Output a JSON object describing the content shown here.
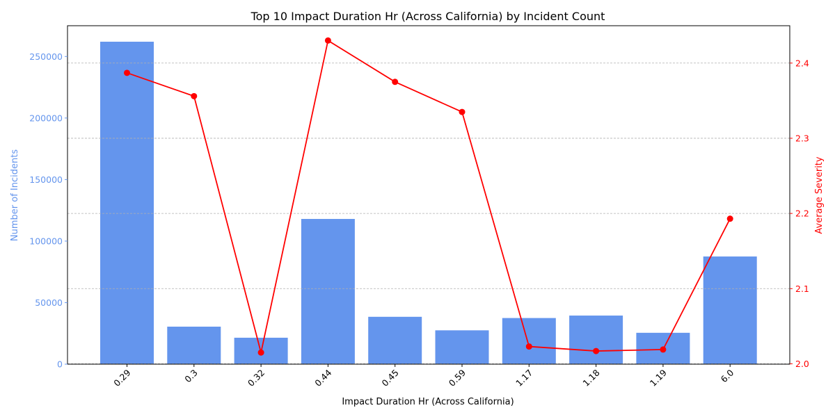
{
  "chart_data": {
    "type": "bar",
    "title": "Top 10 Impact Duration Hr (Across California) by Incident Count",
    "xlabel": "Impact Duration Hr (Across California)",
    "categories": [
      "0.29",
      "0.3",
      "0.32",
      "0.44",
      "0.45",
      "0.59",
      "1.17",
      "1.18",
      "1.19",
      "6.0"
    ],
    "y_left": {
      "label": "Number of Incidents",
      "lim": [
        0,
        275000
      ],
      "ticks": [
        0,
        50000,
        100000,
        150000,
        200000,
        250000
      ],
      "color": "#6495ED"
    },
    "y_right": {
      "label": "Average Severity",
      "lim": [
        1.9995,
        2.4497
      ],
      "ticks": [
        2.0,
        2.1,
        2.2,
        2.3,
        2.4
      ],
      "tick_labels": [
        "2.0",
        "2.1",
        "2.2",
        "2.3",
        "2.4"
      ],
      "color": "#FF0000"
    },
    "series": [
      {
        "type": "bar",
        "axis": "left",
        "color": "#6495ED",
        "values": [
          262000,
          30500,
          21500,
          118000,
          38500,
          27500,
          37500,
          39500,
          25500,
          87500
        ]
      },
      {
        "type": "line",
        "axis": "right",
        "color": "#FF0000",
        "marker": "circle",
        "values": [
          2.387,
          2.356,
          2.015,
          2.43,
          2.375,
          2.335,
          2.023,
          2.017,
          2.019,
          2.193
        ]
      }
    ],
    "grid": "horizontal-dashed (right axis)",
    "legend": "none"
  }
}
